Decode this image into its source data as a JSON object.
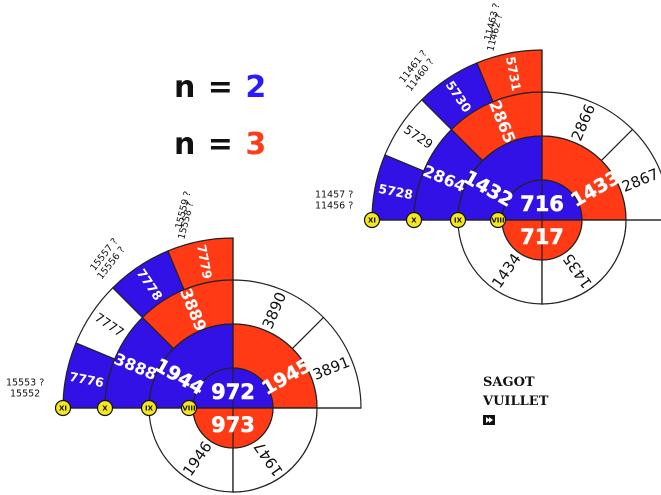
{
  "legend": {
    "line1": {
      "label": "n = ",
      "value": "2",
      "color": "#2a1aff"
    },
    "line2": {
      "label": "n = ",
      "value": "3",
      "color": "#ff3b19"
    }
  },
  "credit": {
    "line1": "SAGOT",
    "line2": "VUILLET"
  },
  "colors": {
    "blue": "#3211e6",
    "red": "#ff3a14",
    "marker": "#f5e61e",
    "line": "#222222"
  },
  "diagrams": [
    {
      "id": "lower-left",
      "center": "972",
      "below": "973",
      "inner_blue": "1944",
      "inner_red": "1945",
      "outer_right": [
        "3890",
        "3891"
      ],
      "bottom": [
        "1946",
        "1947"
      ],
      "ring3_blue": "3888",
      "ring3_red": "3889",
      "ring4": [
        "7776",
        "7777",
        "7778",
        "7779"
      ],
      "annotations": [
        {
          "lines": [
            "15553 ?",
            "15552"
          ]
        },
        {
          "lines": [
            "15557 ?",
            "15556 ?"
          ]
        },
        {
          "lines": [
            "15559 ?",
            "15558 ?"
          ]
        }
      ],
      "markers": [
        "VIII",
        "IX",
        "X",
        "XI"
      ]
    },
    {
      "id": "upper-right",
      "center": "716",
      "below": "717",
      "inner_blue": "1432",
      "inner_red": "1433",
      "outer_right": [
        "2866",
        "2867"
      ],
      "bottom": [
        "1434",
        "1435"
      ],
      "ring3_blue": "2864",
      "ring3_red": "2865",
      "ring4": [
        "5728",
        "5729",
        "5730",
        "5731"
      ],
      "annotations": [
        {
          "lines": [
            "11457 ?",
            "11456 ?"
          ]
        },
        {
          "lines": [
            "11461 ?",
            "11460 ?"
          ]
        },
        {
          "lines": [
            "11463 ?",
            "11462 ?"
          ]
        }
      ],
      "markers": [
        "VIII",
        "IX",
        "X",
        "XI"
      ]
    }
  ]
}
